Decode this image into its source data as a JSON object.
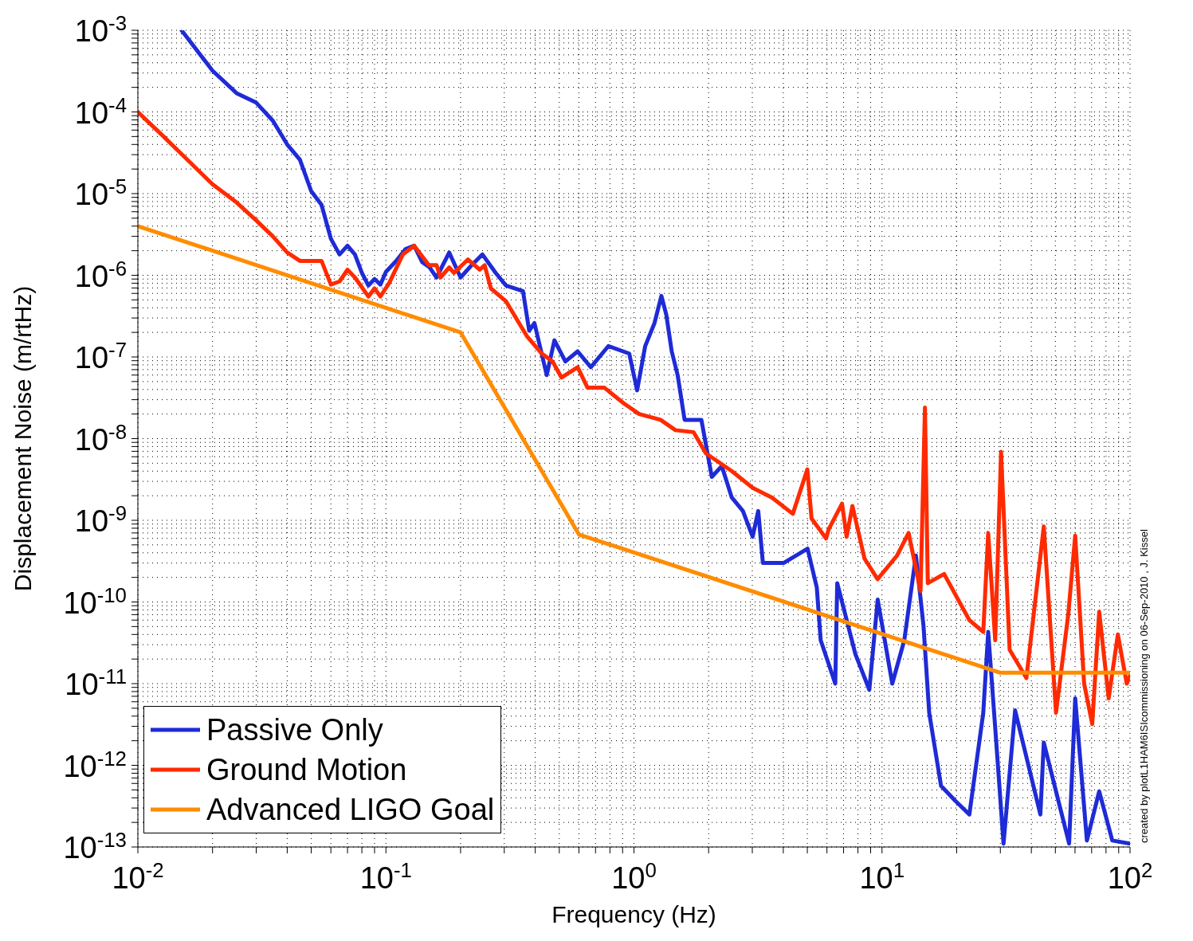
{
  "chart_data": {
    "type": "line",
    "xlabel": "Frequency (Hz)",
    "ylabel": "Displacement Noise (m/rtHz)",
    "log": "xy",
    "grid": true,
    "legend": "bottom left",
    "marker": "none",
    "line_style": "solid",
    "annotations": [
      "created by plotL1HAM6ISIcommissioning on 06-Sep-2010 , J. Kissel"
    ],
    "xlim": [
      0.01,
      100
    ],
    "ylim": [
      1e-13,
      0.001
    ],
    "xticks": [
      {
        "value": 0.01,
        "label": "10$^{-2}$"
      },
      {
        "value": 0.02,
        "label": null
      },
      {
        "value": 0.03,
        "label": null
      },
      {
        "value": 0.04,
        "label": null
      },
      {
        "value": 0.05,
        "label": null
      },
      {
        "value": 0.06,
        "label": null
      },
      {
        "value": 0.07,
        "label": null
      },
      {
        "value": 0.08,
        "label": null
      },
      {
        "value": 0.09,
        "label": null
      },
      {
        "value": 0.1,
        "label": "10$^{-1}$"
      },
      {
        "value": 0.2,
        "label": null
      },
      {
        "value": 0.3,
        "label": null
      },
      {
        "value": 0.4,
        "label": null
      },
      {
        "value": 0.5,
        "label": null
      },
      {
        "value": 0.6,
        "label": null
      },
      {
        "value": 0.7,
        "label": null
      },
      {
        "value": 0.8,
        "label": null
      },
      {
        "value": 0.9,
        "label": null
      },
      {
        "value": 1,
        "label": "10$^{0}$"
      },
      {
        "value": 2,
        "label": null
      },
      {
        "value": 3,
        "label": null
      },
      {
        "value": 4,
        "label": null
      },
      {
        "value": 5,
        "label": null
      },
      {
        "value": 6,
        "label": null
      },
      {
        "value": 7,
        "label": null
      },
      {
        "value": 8,
        "label": null
      },
      {
        "value": 9,
        "label": null
      },
      {
        "value": 10,
        "label": "10$^{1}$"
      },
      {
        "value": 20,
        "label": null
      },
      {
        "value": 30,
        "label": null
      },
      {
        "value": 40,
        "label": null
      },
      {
        "value": 50,
        "label": null
      },
      {
        "value": 60,
        "label": null
      },
      {
        "value": 70,
        "label": null
      },
      {
        "value": 80,
        "label": null
      },
      {
        "value": 90,
        "label": null
      },
      {
        "value": 100,
        "label": "10$^{2}$"
      }
    ],
    "yticks": [
      {
        "value": 1e-13,
        "label": "10$^{-13}$"
      },
      {
        "value": 2e-13,
        "label": null
      },
      {
        "value": 3e-13,
        "label": null
      },
      {
        "value": 4e-13,
        "label": null
      },
      {
        "value": 5e-13,
        "label": null
      },
      {
        "value": 6e-13,
        "label": null
      },
      {
        "value": 7e-13,
        "label": null
      },
      {
        "value": 8e-13,
        "label": null
      },
      {
        "value": 9e-13,
        "label": null
      },
      {
        "value": 1e-12,
        "label": "10$^{-12}$"
      },
      {
        "value": 2e-12,
        "label": null
      },
      {
        "value": 3e-12,
        "label": null
      },
      {
        "value": 4e-12,
        "label": null
      },
      {
        "value": 5e-12,
        "label": null
      },
      {
        "value": 6e-12,
        "label": null
      },
      {
        "value": 7e-12,
        "label": null
      },
      {
        "value": 8e-12,
        "label": null
      },
      {
        "value": 9e-12,
        "label": null
      },
      {
        "value": 1e-11,
        "label": "10$^{-11}$"
      },
      {
        "value": 2e-11,
        "label": null
      },
      {
        "value": 3e-11,
        "label": null
      },
      {
        "value": 4e-11,
        "label": null
      },
      {
        "value": 5e-11,
        "label": null
      },
      {
        "value": 6e-11,
        "label": null
      },
      {
        "value": 7e-11,
        "label": null
      },
      {
        "value": 8e-11,
        "label": null
      },
      {
        "value": 9e-11,
        "label": null
      },
      {
        "value": 1e-10,
        "label": "10$^{-10}$"
      },
      {
        "value": 2e-10,
        "label": null
      },
      {
        "value": 3e-10,
        "label": null
      },
      {
        "value": 4e-10,
        "label": null
      },
      {
        "value": 5e-10,
        "label": null
      },
      {
        "value": 6e-10,
        "label": null
      },
      {
        "value": 7e-10,
        "label": null
      },
      {
        "value": 8e-10,
        "label": null
      },
      {
        "value": 9e-10,
        "label": null
      },
      {
        "value": 1e-09,
        "label": "10$^{-9}$"
      },
      {
        "value": 2e-09,
        "label": null
      },
      {
        "value": 3e-09,
        "label": null
      },
      {
        "value": 4e-09,
        "label": null
      },
      {
        "value": 5e-09,
        "label": null
      },
      {
        "value": 6e-09,
        "label": null
      },
      {
        "value": 7e-09,
        "label": null
      },
      {
        "value": 8e-09,
        "label": null
      },
      {
        "value": 9e-09,
        "label": null
      },
      {
        "value": 1e-08,
        "label": "10$^{-8}$"
      },
      {
        "value": 2e-08,
        "label": null
      },
      {
        "value": 3e-08,
        "label": null
      },
      {
        "value": 4e-08,
        "label": null
      },
      {
        "value": 5e-08,
        "label": null
      },
      {
        "value": 6e-08,
        "label": null
      },
      {
        "value": 7e-08,
        "label": null
      },
      {
        "value": 8e-08,
        "label": null
      },
      {
        "value": 9e-08,
        "label": null
      },
      {
        "value": 1e-07,
        "label": "10$^{-7}$"
      },
      {
        "value": 2e-07,
        "label": null
      },
      {
        "value": 3e-07,
        "label": null
      },
      {
        "value": 4e-07,
        "label": null
      },
      {
        "value": 5e-07,
        "label": null
      },
      {
        "value": 6e-07,
        "label": null
      },
      {
        "value": 7e-07,
        "label": null
      },
      {
        "value": 8e-07,
        "label": null
      },
      {
        "value": 9e-07,
        "label": null
      },
      {
        "value": 1e-06,
        "label": "10$^{-6}$"
      },
      {
        "value": 2e-06,
        "label": null
      },
      {
        "value": 3e-06,
        "label": null
      },
      {
        "value": 4e-06,
        "label": null
      },
      {
        "value": 5e-06,
        "label": null
      },
      {
        "value": 6e-06,
        "label": null
      },
      {
        "value": 7e-06,
        "label": null
      },
      {
        "value": 8e-06,
        "label": null
      },
      {
        "value": 9e-06,
        "label": null
      },
      {
        "value": 1e-05,
        "label": "10$^{-5}$"
      },
      {
        "value": 2e-05,
        "label": null
      },
      {
        "value": 3e-05,
        "label": null
      },
      {
        "value": 4e-05,
        "label": null
      },
      {
        "value": 5e-05,
        "label": null
      },
      {
        "value": 6e-05,
        "label": null
      },
      {
        "value": 7e-05,
        "label": null
      },
      {
        "value": 8e-05,
        "label": null
      },
      {
        "value": 9e-05,
        "label": null
      },
      {
        "value": 0.0001,
        "label": "10$^{-4}$"
      },
      {
        "value": 0.0002,
        "label": null
      },
      {
        "value": 0.0003,
        "label": null
      },
      {
        "value": 0.0004,
        "label": null
      },
      {
        "value": 0.0005,
        "label": null
      },
      {
        "value": 0.0006,
        "label": null
      },
      {
        "value": 0.0007,
        "label": null
      },
      {
        "value": 0.0008,
        "label": null
      },
      {
        "value": 0.0009,
        "label": null
      },
      {
        "value": 0.001,
        "label": "10$^{-3}$"
      }
    ],
    "series": [
      {
        "name": "Passive Only",
        "color": "#1f2bd6",
        "x": [
          0.015,
          0.02,
          0.025,
          0.03,
          0.035,
          0.04,
          0.045,
          0.05,
          0.055,
          0.06,
          0.065,
          0.07,
          0.075,
          0.08,
          0.085,
          0.09,
          0.095,
          0.1,
          0.11,
          0.12,
          0.13,
          0.14,
          0.15,
          0.16,
          0.18,
          0.2,
          0.22,
          0.245,
          0.277,
          0.305,
          0.357,
          0.378,
          0.397,
          0.445,
          0.478,
          0.529,
          0.593,
          0.67,
          0.789,
          0.957,
          1.03,
          1.11,
          1.21,
          1.29,
          1.35,
          1.42,
          1.5,
          1.6,
          1.87,
          2.06,
          2.26,
          2.48,
          2.75,
          3.01,
          3.17,
          3.31,
          4.01,
          5.01,
          5.46,
          5.66,
          6.48,
          6.6,
          7.81,
          8.89,
          9.61,
          11,
          12.3,
          13.7,
          14.7,
          15.5,
          17.3,
          19.7,
          22.5,
          25.6,
          26.8,
          28.6,
          30.9,
          34.4,
          43.5,
          44.9,
          56.8,
          60.1,
          67,
          75.1,
          84.8,
          100
        ],
        "values": [
          0.001,
          0.00032,
          0.00017,
          0.00013,
          7.8e-05,
          4e-05,
          2.6e-05,
          1.07e-05,
          7.3e-06,
          2.8e-06,
          1.8e-06,
          2.3e-06,
          1.8e-06,
          1.07e-06,
          7.5e-07,
          9e-07,
          7.7e-07,
          1.1e-06,
          1.5e-06,
          2.1e-06,
          2.3e-06,
          1.45e-06,
          1.25e-06,
          9.4e-07,
          1.9e-06,
          9.4e-07,
          1.3e-06,
          1.8e-06,
          1.07e-06,
          7.5e-07,
          6.4e-07,
          2.1e-07,
          2.6e-07,
          6e-08,
          1.6e-07,
          8.8e-08,
          1.17e-07,
          7.5e-08,
          1.36e-07,
          1.1e-07,
          3.9e-08,
          1.36e-07,
          2.6e-07,
          5.6e-07,
          3.3e-07,
          1.17e-07,
          6e-08,
          1.7e-08,
          1.7e-08,
          3.4e-09,
          4.6e-09,
          1.9e-09,
          1.3e-09,
          6.3e-10,
          1.3e-09,
          3e-10,
          3e-10,
          4.5e-10,
          1.5e-10,
          3.4e-11,
          1e-11,
          1.7e-10,
          2.3e-11,
          8.4e-12,
          1.07e-10,
          1e-11,
          3.4e-11,
          3.7e-10,
          5.1e-11,
          4.4e-12,
          5.6e-13,
          3.7e-13,
          2.5e-13,
          4.4e-12,
          4.3e-11,
          2.9e-12,
          1.1e-13,
          4.7e-12,
          2.5e-13,
          1.9e-12,
          1.1e-13,
          6.6e-12,
          1.2e-13,
          4.8e-13,
          1.2e-13,
          1.1e-13
        ]
      },
      {
        "name": "Ground Motion",
        "color": "#ff2a00",
        "x": [
          0.01,
          0.0127,
          0.02,
          0.025,
          0.03,
          0.035,
          0.04,
          0.045,
          0.055,
          0.06,
          0.065,
          0.07,
          0.075,
          0.085,
          0.09,
          0.095,
          0.103,
          0.117,
          0.13,
          0.149,
          0.16,
          0.166,
          0.18,
          0.188,
          0.214,
          0.239,
          0.25,
          0.265,
          0.305,
          0.37,
          0.425,
          0.47,
          0.51,
          0.593,
          0.65,
          0.76,
          0.91,
          1.05,
          1.28,
          1.47,
          1.74,
          1.95,
          2.48,
          3.01,
          3.6,
          4.37,
          5,
          5.2,
          5.95,
          6.1,
          6.9,
          7.2,
          7.6,
          8.5,
          9.6,
          11.5,
          12.8,
          14.3,
          14.9,
          15.3,
          17.8,
          22.5,
          25.6,
          26.8,
          28.6,
          30.2,
          32.7,
          38.2,
          44.9,
          50.3,
          56.4,
          60.1,
          65.3,
          70.4,
          75.1,
          82,
          89.3,
          97,
          100
        ],
        "values": [
          0.0001,
          5e-05,
          1.3e-05,
          7.8e-06,
          4.7e-06,
          3e-06,
          1.9e-06,
          1.5e-06,
          1.5e-06,
          7.7e-07,
          8.4e-07,
          1.17e-06,
          9.4e-07,
          5.5e-07,
          6.9e-07,
          5.5e-07,
          8e-07,
          1.8e-06,
          2.3e-06,
          1.33e-06,
          1.33e-06,
          9.4e-07,
          1.25e-06,
          1.07e-06,
          1.56e-06,
          1.17e-06,
          1.33e-06,
          6.9e-07,
          4.8e-07,
          1.8e-07,
          1.1e-07,
          8.8e-08,
          5.6e-08,
          7.5e-08,
          4.2e-08,
          4.2e-08,
          2.7e-08,
          2e-08,
          1.7e-08,
          1.27e-08,
          1.2e-08,
          6.6e-09,
          4e-09,
          2.5e-09,
          1.9e-09,
          1.2e-09,
          4.2e-09,
          1.05e-09,
          6e-10,
          7.8e-10,
          1.6e-09,
          6.3e-10,
          1.5e-09,
          3.4e-10,
          1.9e-10,
          3.7e-10,
          7e-10,
          1.36e-10,
          2.4e-08,
          1.7e-10,
          2.2e-10,
          6e-11,
          4.3e-11,
          7e-10,
          3.4e-11,
          6.9e-09,
          2.6e-11,
          1.17e-11,
          8.4e-10,
          4.4e-12,
          7.2e-11,
          6.5e-10,
          1e-11,
          3.2e-12,
          7.6e-11,
          6.6e-12,
          4e-11,
          1e-11,
          1.25e-11
        ]
      },
      {
        "name": "Advanced LIGO Goal",
        "color": "#ff8c00",
        "x": [
          0.01,
          0.2,
          0.6,
          30,
          100
        ],
        "values": [
          4e-06,
          2e-07,
          6.7e-10,
          1.36e-11,
          1.36e-11
        ]
      }
    ]
  }
}
